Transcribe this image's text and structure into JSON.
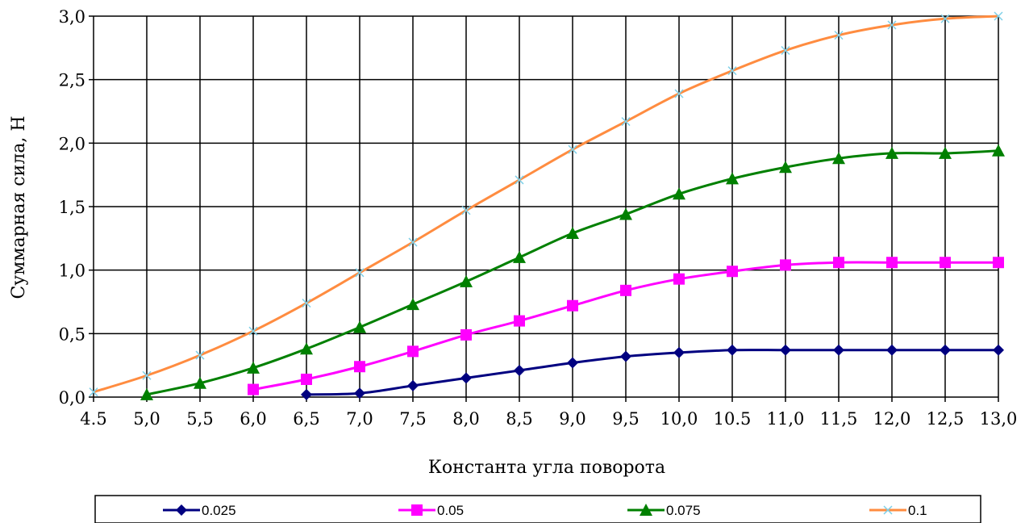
{
  "chart_data": {
    "type": "line",
    "xlabel": "Константа угла поворота",
    "ylabel": "Суммарная сила, Н",
    "x_tick_labels": [
      "4.5",
      "5,0",
      "5,5",
      "6,0",
      "6,5",
      "7,0",
      "7,5",
      "8,0",
      "8,5",
      "9,0",
      "9,5",
      "10,0",
      "10.5",
      "11,0",
      "11,5",
      "12,0",
      "12,5",
      "13,0"
    ],
    "y_tick_labels": [
      "0,0",
      "0,5",
      "1,0",
      "1,5",
      "2,0",
      "2,5",
      "3,0"
    ],
    "xlim": [
      4.5,
      13.0
    ],
    "ylim": [
      0,
      3.0
    ],
    "grid": true,
    "legend_position": "bottom",
    "series": [
      {
        "name": "0.025",
        "color": "#000080",
        "marker": "diamond",
        "x": [
          6.5,
          7.0,
          7.5,
          8.0,
          8.5,
          9.0,
          9.5,
          10.0,
          10.5,
          11.0,
          11.5,
          12.0,
          12.5,
          13.0
        ],
        "y": [
          0.02,
          0.03,
          0.09,
          0.15,
          0.21,
          0.27,
          0.32,
          0.35,
          0.37,
          0.37,
          0.37,
          0.37,
          0.37,
          0.37
        ]
      },
      {
        "name": "0.05",
        "color": "#FF00FF",
        "marker": "square",
        "x": [
          6.0,
          6.5,
          7.0,
          7.5,
          8.0,
          8.5,
          9.0,
          9.5,
          10.0,
          10.5,
          11.0,
          11.5,
          12.0,
          12.5,
          13.0
        ],
        "y": [
          0.06,
          0.14,
          0.24,
          0.36,
          0.49,
          0.6,
          0.72,
          0.84,
          0.93,
          0.99,
          1.04,
          1.06,
          1.06,
          1.06,
          1.06
        ]
      },
      {
        "name": "0.075",
        "color": "#008000",
        "marker": "triangle",
        "x": [
          5.0,
          5.5,
          6.0,
          6.5,
          7.0,
          7.5,
          8.0,
          8.5,
          9.0,
          9.5,
          10.0,
          10.5,
          11.0,
          11.5,
          12.0,
          12.5,
          13.0
        ],
        "y": [
          0.02,
          0.11,
          0.23,
          0.38,
          0.55,
          0.73,
          0.91,
          1.1,
          1.29,
          1.44,
          1.6,
          1.72,
          1.81,
          1.88,
          1.92,
          1.92,
          1.94
        ]
      },
      {
        "name": "0.1",
        "color": "#FF8C40",
        "marker": "x",
        "x": [
          4.5,
          5.0,
          5.5,
          6.0,
          6.5,
          7.0,
          7.5,
          8.0,
          8.5,
          9.0,
          9.5,
          10.0,
          10.5,
          11.0,
          11.5,
          12.0,
          12.5,
          13.0
        ],
        "y": [
          0.04,
          0.17,
          0.33,
          0.52,
          0.74,
          0.98,
          1.22,
          1.47,
          1.71,
          1.95,
          2.17,
          2.39,
          2.57,
          2.73,
          2.85,
          2.93,
          2.98,
          3.0
        ]
      }
    ]
  }
}
